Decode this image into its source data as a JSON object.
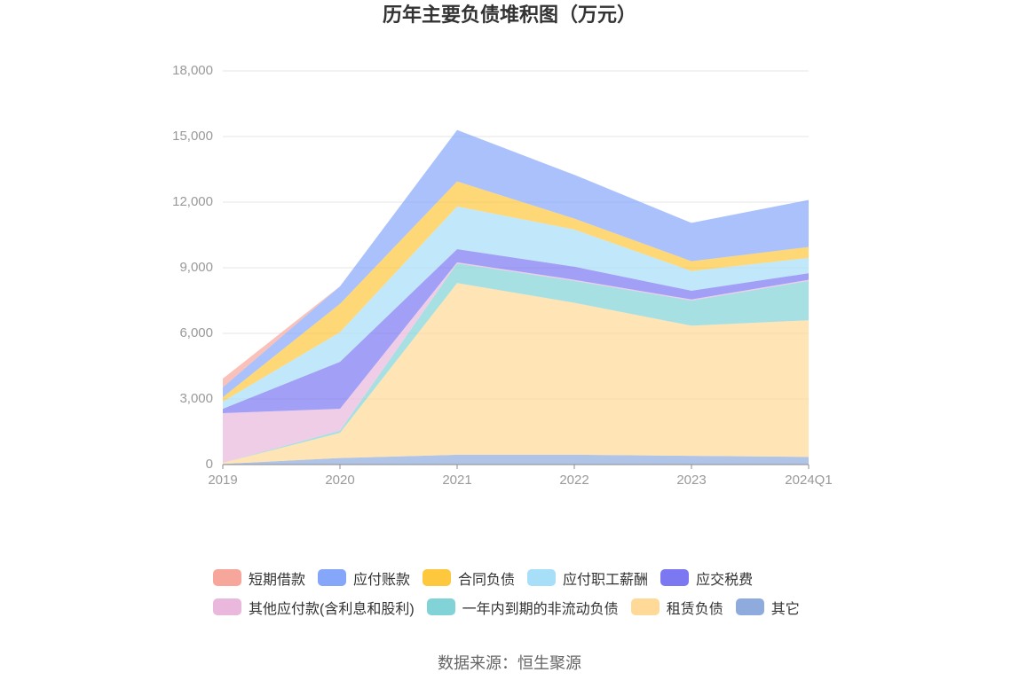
{
  "chart_data": {
    "type": "area",
    "stacked": true,
    "title": "历年主要负债堆积图（万元）",
    "x": [
      "2019",
      "2020",
      "2021",
      "2022",
      "2023",
      "2024Q1"
    ],
    "ylim": [
      0,
      18000
    ],
    "ytick_labels": [
      "0",
      "3,000",
      "6,000",
      "9,000",
      "12,000",
      "15,000",
      "18,000"
    ],
    "grid": true,
    "legend_position": "bottom",
    "series": [
      {
        "name": "短期借款",
        "color": "#f7a69b",
        "values": [
          400,
          0,
          0,
          0,
          0,
          0
        ]
      },
      {
        "name": "应付账款",
        "color": "#86a6f9",
        "values": [
          450,
          800,
          2350,
          2000,
          1750,
          2150
        ]
      },
      {
        "name": "合同负债",
        "color": "#fdc83d",
        "values": [
          200,
          1300,
          1150,
          500,
          450,
          500
        ]
      },
      {
        "name": "应付职工薪酬",
        "color": "#a7def8",
        "values": [
          330,
          1350,
          1950,
          1700,
          900,
          700
        ]
      },
      {
        "name": "应交税费",
        "color": "#7b78f2",
        "values": [
          200,
          2150,
          600,
          600,
          400,
          300
        ]
      },
      {
        "name": "其他应付款(含利息和股利)",
        "color": "#e9b8dc",
        "values": [
          2270,
          1000,
          50,
          50,
          50,
          50
        ]
      },
      {
        "name": "一年内到期的非流动负债",
        "color": "#82d3d7",
        "values": [
          0,
          100,
          900,
          1000,
          1150,
          1800
        ]
      },
      {
        "name": "租赁负债",
        "color": "#ffd997",
        "values": [
          50,
          1150,
          7850,
          6950,
          5950,
          6250
        ]
      },
      {
        "name": "其它",
        "color": "#8fabdd",
        "values": [
          30,
          300,
          450,
          450,
          400,
          350
        ]
      }
    ]
  },
  "footer": {
    "source": "数据来源：恒生聚源"
  }
}
